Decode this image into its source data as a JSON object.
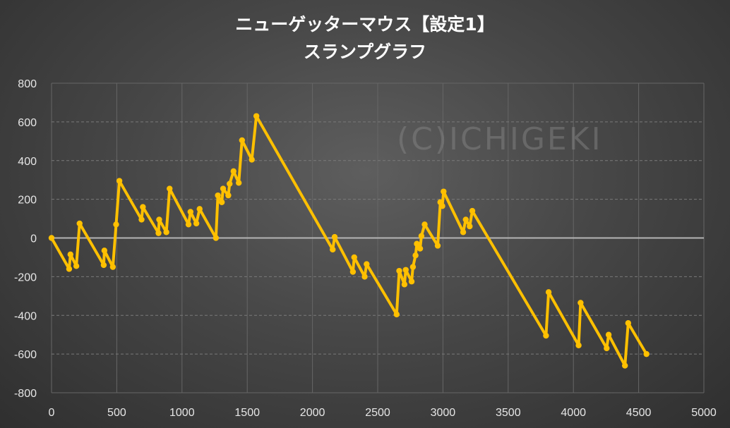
{
  "chart_data": {
    "type": "line",
    "title": "ニューゲッターマウス【設定1】",
    "subtitle": "スランプグラフ",
    "xlabel": "",
    "ylabel": "",
    "xlim": [
      0,
      5000
    ],
    "ylim": [
      -800,
      800
    ],
    "xticks": [
      0,
      500,
      1000,
      1500,
      2000,
      2500,
      3000,
      3500,
      4000,
      4500,
      5000
    ],
    "yticks": [
      800,
      600,
      400,
      200,
      0,
      -200,
      -400,
      -600,
      -800
    ],
    "grid": true,
    "legend": "none",
    "line_color": "#ffc000",
    "watermark": "(C)ICHIGEKI",
    "points": [
      [
        0,
        0
      ],
      [
        135,
        -160
      ],
      [
        145,
        -85
      ],
      [
        190,
        -145
      ],
      [
        215,
        75
      ],
      [
        400,
        -140
      ],
      [
        405,
        -65
      ],
      [
        470,
        -150
      ],
      [
        495,
        70
      ],
      [
        520,
        295
      ],
      [
        690,
        95
      ],
      [
        700,
        160
      ],
      [
        820,
        25
      ],
      [
        825,
        95
      ],
      [
        880,
        30
      ],
      [
        905,
        255
      ],
      [
        1050,
        70
      ],
      [
        1065,
        135
      ],
      [
        1110,
        75
      ],
      [
        1135,
        150
      ],
      [
        1260,
        0
      ],
      [
        1275,
        220
      ],
      [
        1305,
        185
      ],
      [
        1315,
        255
      ],
      [
        1355,
        220
      ],
      [
        1365,
        280
      ],
      [
        1395,
        345
      ],
      [
        1435,
        285
      ],
      [
        1460,
        505
      ],
      [
        1535,
        405
      ],
      [
        1570,
        630
      ],
      [
        2155,
        -60
      ],
      [
        2170,
        5
      ],
      [
        2310,
        -175
      ],
      [
        2320,
        -100
      ],
      [
        2400,
        -200
      ],
      [
        2415,
        -135
      ],
      [
        2645,
        -395
      ],
      [
        2665,
        -170
      ],
      [
        2705,
        -240
      ],
      [
        2715,
        -165
      ],
      [
        2760,
        -225
      ],
      [
        2770,
        -150
      ],
      [
        2790,
        -90
      ],
      [
        2800,
        -30
      ],
      [
        2825,
        -55
      ],
      [
        2835,
        10
      ],
      [
        2860,
        70
      ],
      [
        2960,
        -40
      ],
      [
        2980,
        185
      ],
      [
        2995,
        165
      ],
      [
        3005,
        240
      ],
      [
        3155,
        30
      ],
      [
        3175,
        95
      ],
      [
        3205,
        60
      ],
      [
        3225,
        140
      ],
      [
        3790,
        -505
      ],
      [
        3810,
        -280
      ],
      [
        4040,
        -555
      ],
      [
        4055,
        -335
      ],
      [
        4255,
        -570
      ],
      [
        4270,
        -500
      ],
      [
        4395,
        -660
      ],
      [
        4420,
        -440
      ],
      [
        4560,
        -600
      ]
    ]
  }
}
